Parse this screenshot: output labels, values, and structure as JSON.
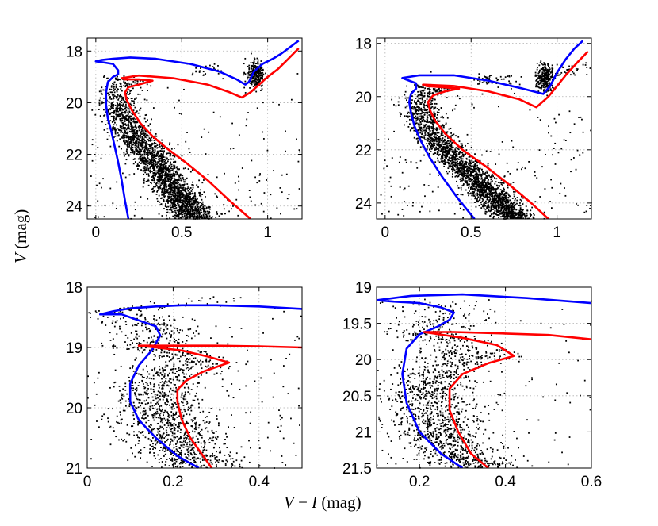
{
  "figure": {
    "ylabel": {
      "var": "V",
      "unit": "(mag)"
    },
    "xlabel": {
      "var1": "V",
      "minus": " − ",
      "var2": "I",
      "unit": " (mag)"
    }
  },
  "chart_data": [
    {
      "type": "scatter",
      "title": "",
      "xlabel": "V − I (mag)",
      "ylabel": "V (mag)",
      "xlim": [
        -0.05,
        1.2
      ],
      "ylim": [
        24.5,
        17.5
      ],
      "xticks": [
        0,
        0.5,
        1
      ],
      "xtick_labels": [
        "0",
        "0.5",
        "1"
      ],
      "yticks": [
        18,
        20,
        22,
        24
      ],
      "ytick_labels": [
        "18",
        "20",
        "22",
        "24"
      ],
      "grid": true,
      "series": [
        {
          "name": "blue isochrone",
          "color": "#0000ff",
          "x": [
            0.19,
            0.17,
            0.15,
            0.13,
            0.11,
            0.09,
            0.07,
            0.06,
            0.06,
            0.07,
            0.1,
            0.13,
            0.13,
            0.1,
            0.05,
            0.0,
            0.03,
            0.1,
            0.2,
            0.35,
            0.55,
            0.72,
            0.82,
            0.87,
            0.89,
            0.92,
            0.97,
            1.03,
            1.08,
            1.12,
            1.18
          ],
          "y": [
            24.5,
            23.8,
            23.0,
            22.3,
            21.7,
            21.1,
            20.6,
            20.1,
            19.6,
            19.2,
            19.0,
            18.9,
            18.75,
            18.5,
            18.45,
            18.4,
            18.35,
            18.3,
            18.25,
            18.3,
            18.5,
            18.8,
            19.1,
            19.3,
            19.2,
            18.8,
            18.5,
            18.3,
            18.1,
            17.9,
            17.6
          ]
        },
        {
          "name": "red isochrone",
          "color": "#ff0000",
          "x": [
            0.9,
            0.78,
            0.65,
            0.52,
            0.42,
            0.33,
            0.26,
            0.21,
            0.18,
            0.17,
            0.19,
            0.25,
            0.33,
            0.25,
            0.17,
            0.15,
            0.25,
            0.45,
            0.65,
            0.78,
            0.85,
            0.9,
            0.95,
            1.0,
            1.06,
            1.12,
            1.18
          ],
          "y": [
            24.5,
            23.8,
            23.0,
            22.3,
            21.8,
            21.3,
            20.8,
            20.3,
            19.9,
            19.6,
            19.4,
            19.3,
            19.15,
            19.1,
            19.1,
            19.05,
            18.95,
            19.05,
            19.3,
            19.6,
            19.8,
            19.6,
            19.3,
            19.0,
            18.7,
            18.3,
            17.9
          ]
        }
      ]
    },
    {
      "type": "scatter",
      "title": "",
      "xlabel": "V − I (mag)",
      "ylabel": "V (mag)",
      "xlim": [
        -0.05,
        1.2
      ],
      "ylim": [
        24.6,
        17.8
      ],
      "xticks": [
        0,
        0.5,
        1
      ],
      "xtick_labels": [
        "0",
        "0.5",
        "1"
      ],
      "yticks": [
        18,
        20,
        22,
        24
      ],
      "ytick_labels": [
        "18",
        "20",
        "22",
        "24"
      ],
      "grid": true,
      "series": [
        {
          "name": "blue isochrone",
          "color": "#0000ff",
          "x": [
            0.52,
            0.42,
            0.33,
            0.26,
            0.21,
            0.17,
            0.15,
            0.14,
            0.15,
            0.18,
            0.18,
            0.12,
            0.1,
            0.2,
            0.4,
            0.6,
            0.8,
            0.92,
            0.96,
            1.0,
            1.05,
            1.1,
            1.15
          ],
          "y": [
            24.6,
            23.8,
            23.0,
            22.3,
            21.7,
            21.1,
            20.6,
            20.2,
            19.9,
            19.7,
            19.5,
            19.35,
            19.3,
            19.2,
            19.2,
            19.4,
            19.7,
            19.9,
            19.6,
            19.1,
            18.6,
            18.2,
            17.9
          ]
        },
        {
          "name": "red isochrone",
          "color": "#ff0000",
          "x": [
            0.95,
            0.85,
            0.72,
            0.58,
            0.45,
            0.35,
            0.29,
            0.26,
            0.25,
            0.28,
            0.35,
            0.43,
            0.33,
            0.24,
            0.22,
            0.4,
            0.6,
            0.78,
            0.88,
            0.95,
            1.0,
            1.05,
            1.12,
            1.18
          ],
          "y": [
            24.6,
            24.0,
            23.3,
            22.6,
            22.0,
            21.4,
            20.9,
            20.5,
            20.2,
            19.95,
            19.8,
            19.7,
            19.65,
            19.6,
            19.55,
            19.6,
            19.8,
            20.1,
            20.4,
            20.0,
            19.6,
            19.2,
            18.7,
            18.3
          ]
        }
      ]
    },
    {
      "type": "scatter",
      "title": "",
      "xlabel": "V − I (mag)",
      "ylabel": "V (mag)",
      "xlim": [
        0,
        0.5
      ],
      "ylim": [
        21,
        18
      ],
      "xticks": [
        0,
        0.2,
        0.4
      ],
      "xtick_labels": [
        "0",
        "0.2",
        "0.4"
      ],
      "yticks": [
        18,
        19,
        20,
        21
      ],
      "ytick_labels": [
        "18",
        "19",
        "20",
        "21"
      ],
      "grid": true,
      "series": [
        {
          "name": "blue isochrone",
          "color": "#0000ff",
          "x": [
            0.26,
            0.21,
            0.16,
            0.12,
            0.1,
            0.1,
            0.12,
            0.15,
            0.17,
            0.16,
            0.14,
            0.12,
            0.1,
            0.08,
            0.06,
            0.03,
            0.06,
            0.1,
            0.16,
            0.22,
            0.3,
            0.4,
            0.5
          ],
          "y": [
            21.0,
            20.8,
            20.5,
            20.2,
            19.9,
            19.6,
            19.3,
            19.05,
            18.8,
            18.65,
            18.6,
            18.55,
            18.5,
            18.45,
            18.45,
            18.45,
            18.4,
            18.35,
            18.32,
            18.3,
            18.3,
            18.32,
            18.36
          ]
        },
        {
          "name": "red isochrone",
          "color": "#ff0000",
          "x": [
            0.29,
            0.27,
            0.24,
            0.22,
            0.21,
            0.21,
            0.23,
            0.27,
            0.33,
            0.28,
            0.22,
            0.16,
            0.12,
            0.2,
            0.3,
            0.4,
            0.5
          ],
          "y": [
            21.0,
            20.8,
            20.5,
            20.2,
            19.9,
            19.7,
            19.55,
            19.4,
            19.25,
            19.15,
            19.05,
            19.0,
            18.97,
            18.97,
            18.97,
            18.98,
            19.0
          ]
        }
      ]
    },
    {
      "type": "scatter",
      "title": "",
      "xlabel": "V − I (mag)",
      "ylabel": "V (mag)",
      "xlim": [
        0.1,
        0.6
      ],
      "ylim": [
        21.5,
        19
      ],
      "xticks": [
        0.2,
        0.4,
        0.6
      ],
      "xtick_labels": [
        "0.2",
        "0.4",
        "0.6"
      ],
      "yticks": [
        19,
        19.5,
        20,
        20.5,
        21,
        21.5
      ],
      "ytick_labels": [
        "19",
        "19.5",
        "20",
        "20.5",
        "21",
        "21.5"
      ],
      "grid": true,
      "series": [
        {
          "name": "blue isochrone",
          "color": "#0000ff",
          "x": [
            0.3,
            0.25,
            0.2,
            0.17,
            0.16,
            0.17,
            0.2,
            0.24,
            0.27,
            0.28,
            0.25,
            0.2,
            0.14,
            0.1,
            0.18,
            0.3,
            0.45,
            0.6
          ],
          "y": [
            21.5,
            21.3,
            21.0,
            20.6,
            20.2,
            19.85,
            19.65,
            19.55,
            19.45,
            19.35,
            19.28,
            19.22,
            19.2,
            19.18,
            19.12,
            19.1,
            19.15,
            19.22
          ]
        },
        {
          "name": "red isochrone",
          "color": "#ff0000",
          "x": [
            0.36,
            0.32,
            0.29,
            0.27,
            0.27,
            0.3,
            0.36,
            0.42,
            0.38,
            0.3,
            0.21,
            0.28,
            0.4,
            0.5,
            0.6
          ],
          "y": [
            21.5,
            21.3,
            21.0,
            20.7,
            20.4,
            20.2,
            20.05,
            19.95,
            19.8,
            19.7,
            19.62,
            19.62,
            19.64,
            19.66,
            19.72
          ]
        }
      ]
    }
  ]
}
